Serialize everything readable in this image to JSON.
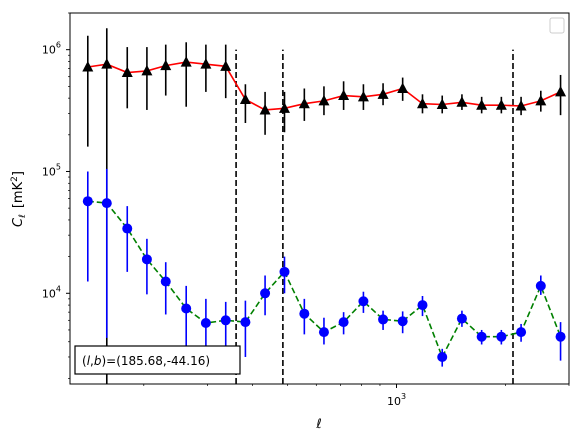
{
  "chart_data": {
    "type": "line",
    "xlabel": "ℓ",
    "ylabel_main": "C",
    "ylabel_sub": "ℓ",
    "ylabel_unit": "[mK",
    "ylabel_unit_sup": "2",
    "ylabel_unit_close": "]",
    "xscale": "log",
    "yscale": "log",
    "xlim": [
      125,
      3000
    ],
    "ylim": [
      1800,
      2000000
    ],
    "x_tick_labels": [
      {
        "value": 1000,
        "base": "10",
        "exp": "3"
      }
    ],
    "y_tick_labels": [
      {
        "value": 10000,
        "base": "10",
        "exp": "4"
      },
      {
        "value": 100000,
        "base": "10",
        "exp": "5"
      },
      {
        "value": 1000000,
        "base": "10",
        "exp": "6"
      }
    ],
    "legend": {
      "placement": "top-right",
      "entries": []
    },
    "vlines": [
      {
        "x": 360,
        "y_from": 1800,
        "y_to": 1000000,
        "color": "#000000"
      },
      {
        "x": 485,
        "y_from": 1800,
        "y_to": 1000000,
        "color": "#000000"
      },
      {
        "x": 2100,
        "y_from": 1800,
        "y_to": 1000000,
        "color": "#000000"
      }
    ],
    "annotation": "(l, b)=(185.68,-44.16)",
    "annotation_parts": {
      "open": "(",
      "l": "l",
      "comma": ",",
      "b": "b",
      "rest": ")=(185.68,-44.16)"
    },
    "series": [
      {
        "marker": "triangle",
        "line_color": "#ff0000",
        "line_style": "solid",
        "marker_color": "#000000",
        "errorbar_color": "#000000",
        "points": [
          {
            "x": 140,
            "y": 720000,
            "lo": 160000,
            "hi": 1300000
          },
          {
            "x": 158,
            "y": 760000,
            "lo": 1800,
            "hi": 1500000
          },
          {
            "x": 180,
            "y": 650000,
            "lo": 330000,
            "hi": 1050000
          },
          {
            "x": 204,
            "y": 670000,
            "lo": 320000,
            "hi": 1050000
          },
          {
            "x": 230,
            "y": 740000,
            "lo": 420000,
            "hi": 1100000
          },
          {
            "x": 262,
            "y": 790000,
            "lo": 340000,
            "hi": 1150000
          },
          {
            "x": 297,
            "y": 760000,
            "lo": 450000,
            "hi": 1100000
          },
          {
            "x": 337,
            "y": 730000,
            "lo": 400000,
            "hi": 1100000
          },
          {
            "x": 382,
            "y": 390000,
            "lo": 250000,
            "hi": 520000
          },
          {
            "x": 433,
            "y": 320000,
            "lo": 200000,
            "hi": 450000
          },
          {
            "x": 490,
            "y": 330000,
            "lo": 210000,
            "hi": 450000
          },
          {
            "x": 556,
            "y": 360000,
            "lo": 260000,
            "hi": 480000
          },
          {
            "x": 630,
            "y": 380000,
            "lo": 290000,
            "hi": 500000
          },
          {
            "x": 714,
            "y": 420000,
            "lo": 320000,
            "hi": 550000
          },
          {
            "x": 810,
            "y": 410000,
            "lo": 320000,
            "hi": 520000
          },
          {
            "x": 918,
            "y": 430000,
            "lo": 350000,
            "hi": 530000
          },
          {
            "x": 1040,
            "y": 480000,
            "lo": 380000,
            "hi": 590000
          },
          {
            "x": 1180,
            "y": 360000,
            "lo": 300000,
            "hi": 430000
          },
          {
            "x": 1338,
            "y": 355000,
            "lo": 300000,
            "hi": 420000
          },
          {
            "x": 1517,
            "y": 370000,
            "lo": 320000,
            "hi": 430000
          },
          {
            "x": 1720,
            "y": 350000,
            "lo": 300000,
            "hi": 410000
          },
          {
            "x": 1950,
            "y": 350000,
            "lo": 300000,
            "hi": 410000
          },
          {
            "x": 2211,
            "y": 345000,
            "lo": 290000,
            "hi": 410000
          },
          {
            "x": 2507,
            "y": 380000,
            "lo": 310000,
            "hi": 460000
          },
          {
            "x": 2843,
            "y": 450000,
            "lo": 290000,
            "hi": 620000
          }
        ]
      },
      {
        "marker": "circle",
        "line_color": "#008000",
        "line_style": "dashed",
        "marker_color": "#0000ff",
        "errorbar_color": "#0000ff",
        "points": [
          {
            "x": 140,
            "y": 57000,
            "lo": 12500,
            "hi": 100000
          },
          {
            "x": 158,
            "y": 55000,
            "lo": 4300,
            "hi": 105000
          },
          {
            "x": 180,
            "y": 34000,
            "lo": 15000,
            "hi": 52000
          },
          {
            "x": 204,
            "y": 19000,
            "lo": 9800,
            "hi": 28000
          },
          {
            "x": 230,
            "y": 12500,
            "lo": 6700,
            "hi": 18000
          },
          {
            "x": 262,
            "y": 7500,
            "lo": 3500,
            "hi": 11500
          },
          {
            "x": 297,
            "y": 5700,
            "lo": 2200,
            "hi": 9000
          },
          {
            "x": 337,
            "y": 6000,
            "lo": 3200,
            "hi": 8500
          },
          {
            "x": 382,
            "y": 5800,
            "lo": 3000,
            "hi": 8700
          },
          {
            "x": 433,
            "y": 10000,
            "lo": 6600,
            "hi": 14000
          },
          {
            "x": 490,
            "y": 15000,
            "lo": 10000,
            "hi": 20000
          },
          {
            "x": 556,
            "y": 6800,
            "lo": 4600,
            "hi": 9000
          },
          {
            "x": 630,
            "y": 4800,
            "lo": 3800,
            "hi": 6300
          },
          {
            "x": 714,
            "y": 5800,
            "lo": 4600,
            "hi": 7000
          },
          {
            "x": 810,
            "y": 8600,
            "lo": 6900,
            "hi": 10300
          },
          {
            "x": 918,
            "y": 6100,
            "lo": 5000,
            "hi": 7200
          },
          {
            "x": 1040,
            "y": 5900,
            "lo": 4700,
            "hi": 7100
          },
          {
            "x": 1180,
            "y": 8000,
            "lo": 6500,
            "hi": 9500
          },
          {
            "x": 1338,
            "y": 3000,
            "lo": 2500,
            "hi": 3500
          },
          {
            "x": 1517,
            "y": 6200,
            "lo": 5300,
            "hi": 7200
          },
          {
            "x": 1720,
            "y": 4400,
            "lo": 3800,
            "hi": 5000
          },
          {
            "x": 1950,
            "y": 4400,
            "lo": 3800,
            "hi": 5000
          },
          {
            "x": 2211,
            "y": 4800,
            "lo": 4000,
            "hi": 5600
          },
          {
            "x": 2507,
            "y": 11500,
            "lo": 9700,
            "hi": 14000
          },
          {
            "x": 2843,
            "y": 4400,
            "lo": 2800,
            "hi": 5800
          }
        ]
      }
    ]
  }
}
